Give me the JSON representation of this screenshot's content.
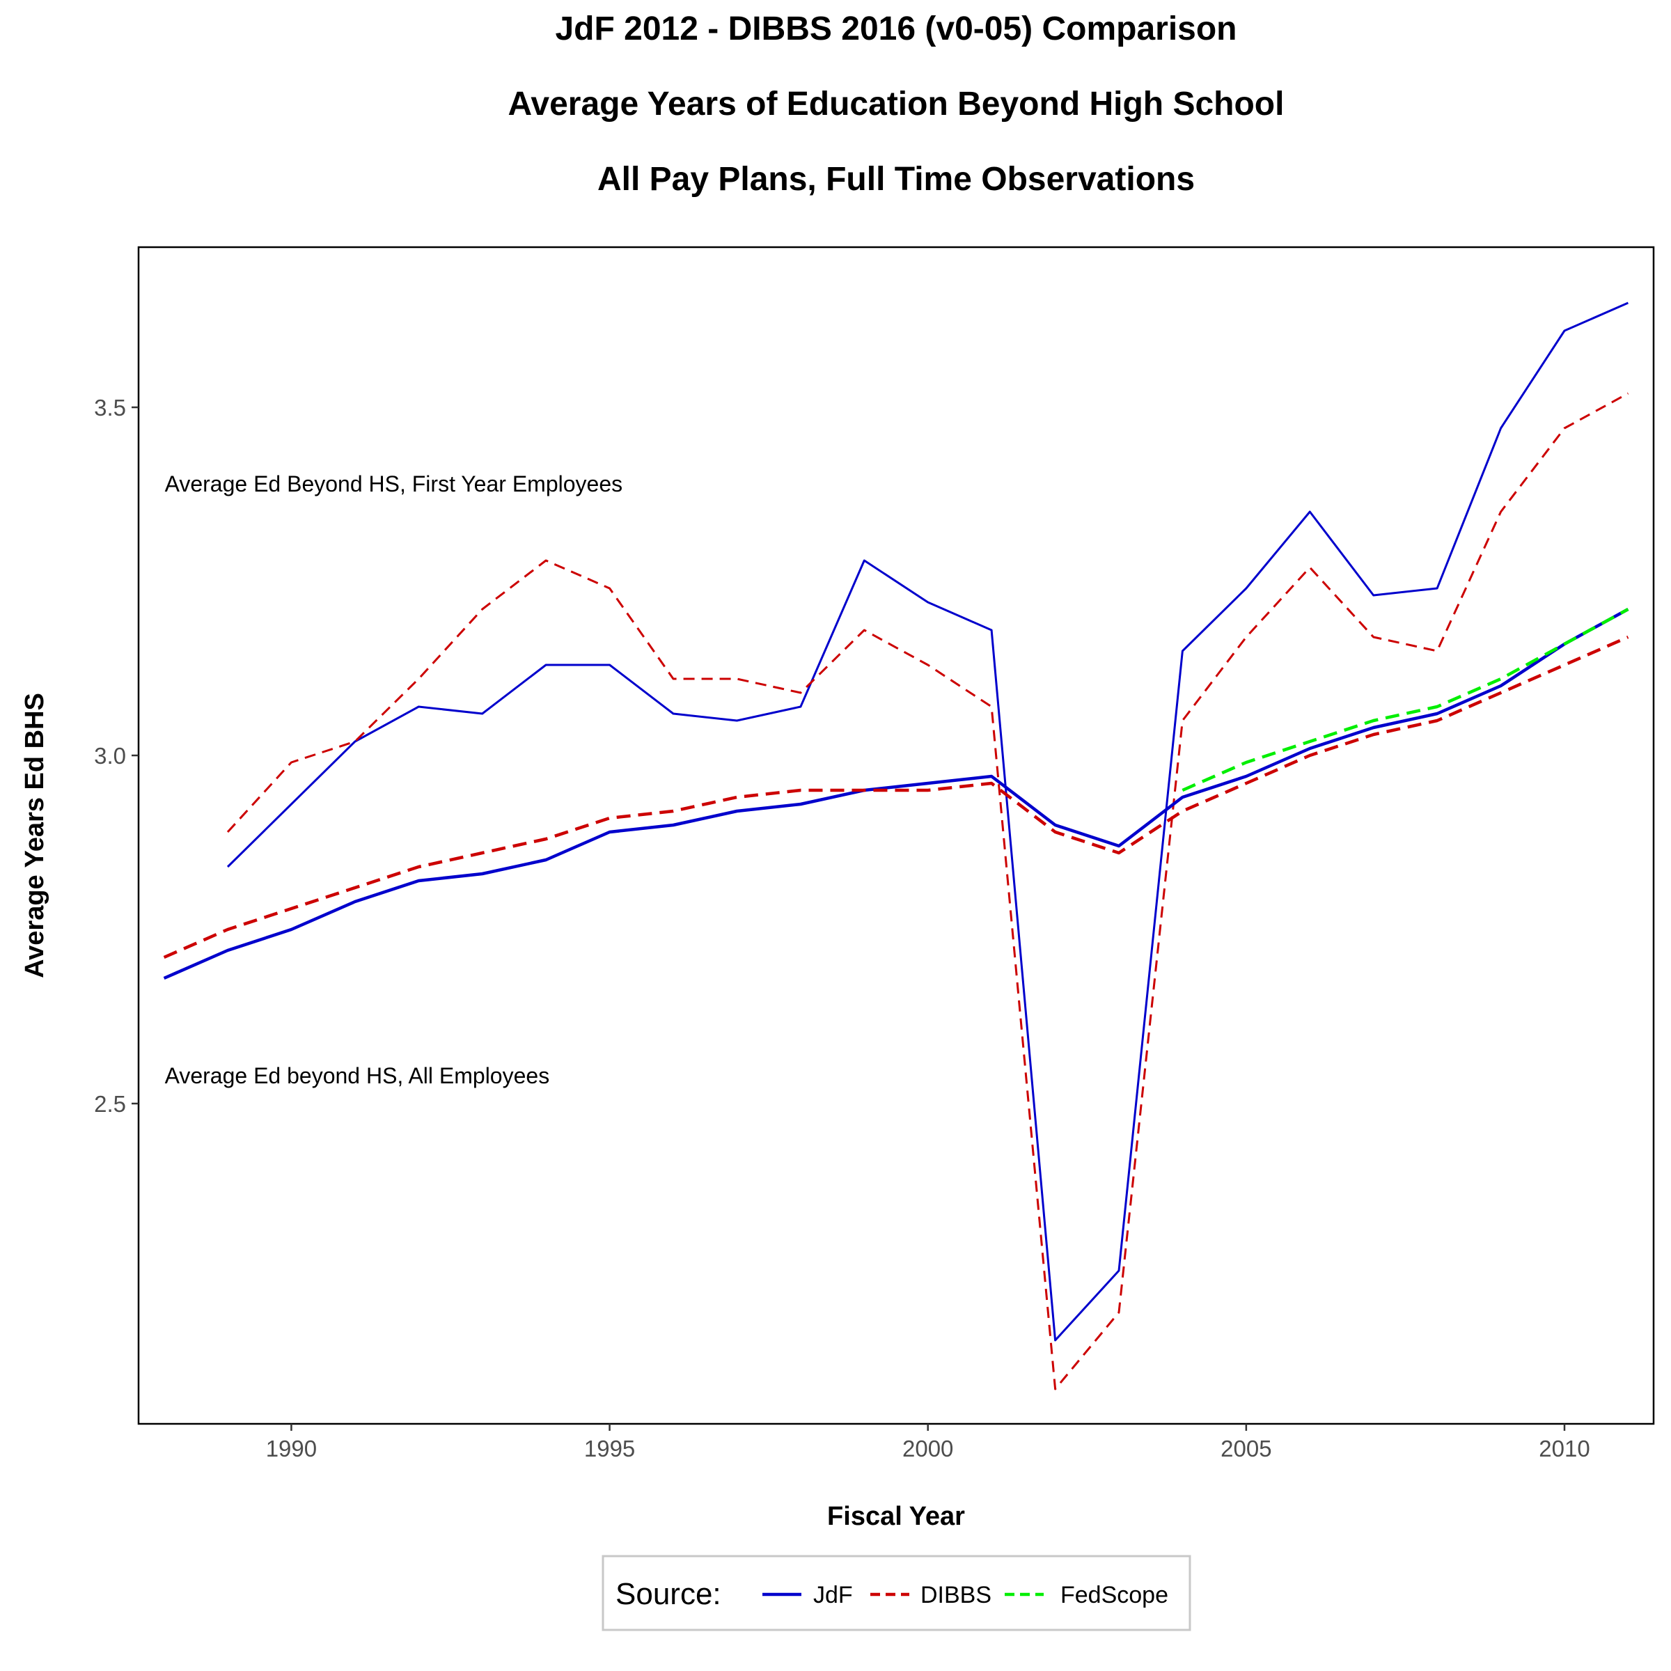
{
  "chart_data": {
    "type": "line",
    "title": "JdF 2012 - DIBBS 2016 (v0-05) Comparison",
    "subtitle": "Average Years of Education Beyond High School",
    "subtitle2": "All Pay Plans, Full Time Observations",
    "xlabel": "Fiscal Year",
    "ylabel": "Average Years Ed BHS",
    "xlim": [
      1987.6,
      2011.4
    ],
    "ylim": [
      2.04,
      3.73
    ],
    "x_ticks": [
      1990,
      1995,
      2000,
      2005,
      2010
    ],
    "y_ticks": [
      2.5,
      3.0,
      3.5
    ],
    "x_tick_labels": [
      "1990",
      "1995",
      "2000",
      "2005",
      "2010"
    ],
    "y_tick_labels": [
      "2.5",
      "3.0",
      "3.5"
    ],
    "grid": false,
    "legend": {
      "title": "Source:",
      "position": "bottom",
      "entries": [
        {
          "label": "JdF",
          "color": "#0000cc",
          "dash": "solid"
        },
        {
          "label": "DIBBS",
          "color": "#cc0000",
          "dash": "dashed"
        },
        {
          "label": "FedScope",
          "color": "#00ee00",
          "dash": "dashed"
        }
      ]
    },
    "annotations": [
      {
        "text": "Average Ed Beyond HS, First Year Employees",
        "x": 1988.0,
        "y": 3.39
      },
      {
        "text": "Average Ed beyond HS, All Employees",
        "x": 1988.0,
        "y": 2.54
      }
    ],
    "series": [
      {
        "name": "JdF",
        "group": "First Year Employees",
        "color": "#0000cc",
        "dash": "solid",
        "weight": "thin",
        "x": [
          1989,
          1990,
          1991,
          1992,
          1993,
          1994,
          1995,
          1996,
          1997,
          1998,
          1999,
          2000,
          2001,
          2002,
          2003,
          2004,
          2005,
          2006,
          2007,
          2008,
          2009,
          2010,
          2011
        ],
        "y": [
          2.84,
          2.93,
          3.02,
          3.07,
          3.06,
          3.13,
          3.13,
          3.06,
          3.05,
          3.07,
          3.28,
          3.22,
          3.18,
          2.16,
          2.26,
          3.15,
          3.24,
          3.35,
          3.23,
          3.24,
          3.47,
          3.61,
          3.65
        ]
      },
      {
        "name": "DIBBS",
        "group": "First Year Employees",
        "color": "#cc0000",
        "dash": "dashed",
        "weight": "thin",
        "x": [
          1989,
          1990,
          1991,
          1992,
          1993,
          1994,
          1995,
          1996,
          1997,
          1998,
          1999,
          2000,
          2001,
          2002,
          2003,
          2004,
          2005,
          2006,
          2007,
          2008,
          2009,
          2010,
          2011
        ],
        "y": [
          2.89,
          2.99,
          3.02,
          3.11,
          3.21,
          3.28,
          3.24,
          3.11,
          3.11,
          3.09,
          3.18,
          3.13,
          3.07,
          2.09,
          2.2,
          3.05,
          3.17,
          3.27,
          3.17,
          3.15,
          3.35,
          3.47,
          3.52
        ]
      },
      {
        "name": "JdF",
        "group": "All Employees",
        "color": "#0000cc",
        "dash": "solid",
        "weight": "thick",
        "x": [
          1988,
          1989,
          1990,
          1991,
          1992,
          1993,
          1994,
          1995,
          1996,
          1997,
          1998,
          1999,
          2000,
          2001,
          2002,
          2003,
          2004,
          2005,
          2006,
          2007,
          2008,
          2009,
          2010,
          2011
        ],
        "y": [
          2.68,
          2.72,
          2.75,
          2.79,
          2.82,
          2.83,
          2.85,
          2.89,
          2.9,
          2.92,
          2.93,
          2.95,
          2.96,
          2.97,
          2.9,
          2.87,
          2.94,
          2.97,
          3.01,
          3.04,
          3.06,
          3.1,
          3.16,
          3.21
        ]
      },
      {
        "name": "DIBBS",
        "group": "All Employees",
        "color": "#cc0000",
        "dash": "dashed",
        "weight": "thick",
        "x": [
          1988,
          1989,
          1990,
          1991,
          1992,
          1993,
          1994,
          1995,
          1996,
          1997,
          1998,
          1999,
          2000,
          2001,
          2002,
          2003,
          2004,
          2005,
          2006,
          2007,
          2008,
          2009,
          2010,
          2011
        ],
        "y": [
          2.71,
          2.75,
          2.78,
          2.81,
          2.84,
          2.86,
          2.88,
          2.91,
          2.92,
          2.94,
          2.95,
          2.95,
          2.95,
          2.96,
          2.89,
          2.86,
          2.92,
          2.96,
          3.0,
          3.03,
          3.05,
          3.09,
          3.13,
          3.17
        ]
      },
      {
        "name": "FedScope",
        "group": "All Employees",
        "color": "#00ee00",
        "dash": "dashed",
        "weight": "thick",
        "x": [
          2004,
          2005,
          2006,
          2007,
          2008,
          2009,
          2010,
          2011
        ],
        "y": [
          2.95,
          2.99,
          3.02,
          3.05,
          3.07,
          3.11,
          3.16,
          3.21
        ]
      }
    ]
  }
}
